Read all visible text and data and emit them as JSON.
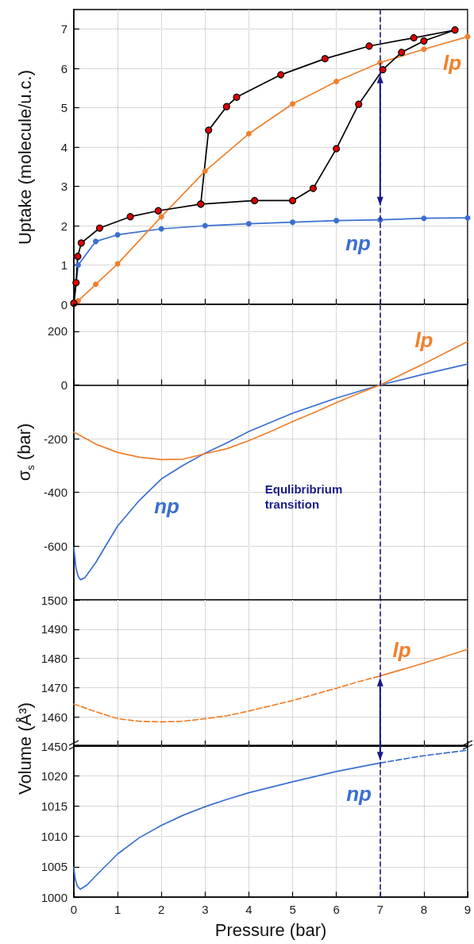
{
  "chart_data": [
    {
      "type": "line",
      "ylabel": "Uptake (molecule/u.c.)",
      "xlim": [
        0,
        9
      ],
      "xticks": [
        0,
        1,
        2,
        3,
        4,
        5,
        6,
        7,
        8,
        9
      ],
      "ylim": [
        0,
        7.5
      ],
      "yticks": [
        0,
        1,
        2,
        3,
        4,
        5,
        6,
        7
      ],
      "grid": true,
      "marker": "circle",
      "tick_labels": "y",
      "series": [
        {
          "color": "#3b6fd1",
          "x": [
            0,
            0.1,
            0.5,
            1,
            2,
            3,
            4,
            5,
            6,
            7,
            8,
            9
          ],
          "values": [
            0,
            1.0,
            1.6,
            1.77,
            1.92,
            2.0,
            2.05,
            2.09,
            2.13,
            2.15,
            2.19,
            2.2
          ]
        },
        {
          "color": "#f0802c",
          "x": [
            0,
            0.1,
            0.5,
            1,
            2,
            3,
            4,
            5,
            6,
            7,
            8,
            9
          ],
          "values": [
            0,
            0.09,
            0.51,
            1.03,
            2.23,
            3.39,
            4.34,
            5.1,
            5.67,
            6.15,
            6.49,
            6.81
          ]
        },
        {
          "color": "#000000",
          "x": [
            0,
            0.05,
            0.09,
            0.17,
            0.59,
            1.29,
            1.93,
            2.9,
            4.13,
            5.0,
            5.47,
            6.0,
            6.51,
            7.06,
            7.49,
            8.0,
            8.71,
            7.77,
            6.75,
            5.74,
            4.73,
            3.72,
            3.49,
            3.08,
            2.9
          ],
          "values": [
            0.03,
            0.55,
            1.22,
            1.56,
            1.94,
            2.23,
            2.38,
            2.55,
            2.64,
            2.64,
            2.95,
            3.96,
            5.09,
            5.97,
            6.41,
            6.7,
            6.98,
            6.78,
            6.57,
            6.25,
            5.84,
            5.27,
            5.03,
            4.43,
            2.55
          ],
          "colors": [
            "#e00000",
            "#e00000",
            "#e00000",
            "#e00000",
            "#e00000",
            "#e00000",
            "#e00000",
            "#e00000",
            "#e00000",
            "#e00000",
            "#e00000",
            "#e00000",
            "#e00000",
            "#e00000",
            "#e00000",
            "#e00000",
            "#e00000",
            "#e00000",
            "#e00000",
            "#e00000",
            "#e00000",
            "#e00000",
            "#e00000",
            "#e00000",
            "#e00000"
          ]
        }
      ],
      "ref_lines": [
        {
          "axis": "x",
          "value": 7,
          "color": "#1a1a8c",
          "line_style": "dashed"
        }
      ],
      "annotations": [
        "np",
        "lp"
      ]
    },
    {
      "type": "line",
      "ylabel": "σ$_{s}$ (bar)",
      "xlim": [
        0,
        9
      ],
      "xticks": [
        0,
        1,
        2,
        3,
        4,
        5,
        6,
        7,
        8,
        9
      ],
      "ylim": [
        -800,
        300
      ],
      "yticks": [
        -600,
        -400,
        -200,
        0,
        200
      ],
      "grid": true,
      "tick_labels": "y",
      "series": [
        {
          "color": "#3b6fd1",
          "x": [
            0,
            0.05,
            0.1,
            0.15,
            0.25,
            0.5,
            1,
            1.5,
            2,
            2.5,
            3,
            3.5,
            4,
            5,
            6,
            7,
            8,
            9
          ],
          "values": [
            -605,
            -684,
            -712,
            -725,
            -718,
            -661,
            -525,
            -429,
            -350,
            -299,
            -254,
            -215,
            -173,
            -105,
            -49,
            0,
            40,
            78
          ]
        },
        {
          "color": "#f0802c",
          "x": [
            0,
            0.5,
            1,
            1.5,
            2,
            2.5,
            3,
            3.5,
            4,
            4.5,
            5,
            5.5,
            6,
            6.5,
            7,
            8,
            9
          ],
          "values": [
            -175,
            -220,
            -251,
            -269,
            -278,
            -276,
            -256,
            -237,
            -207,
            -173,
            -136,
            -102,
            -66,
            -32,
            0,
            79,
            162
          ]
        }
      ],
      "ref_lines": [
        {
          "axis": "x",
          "value": 7,
          "color": "#1a1a8c",
          "line_style": "dashed",
          "label": "Equlibribrium transition"
        }
      ],
      "annotations": [
        "np",
        "lp"
      ]
    },
    {
      "type": "line",
      "xlim": [
        0,
        9
      ],
      "xticks": [
        0,
        1,
        2,
        3,
        4,
        5,
        6,
        7,
        8,
        9
      ],
      "ylim": [
        1450,
        1500
      ],
      "yticks": [
        1450,
        1460,
        1470,
        1480,
        1490,
        1500
      ],
      "grid": true,
      "tick_labels": "y",
      "series": [
        {
          "color": "#f0802c",
          "line_style": "dashed",
          "x": [
            0,
            0.5,
            1,
            1.5,
            2,
            2.5,
            3,
            3.5,
            4,
            4.5,
            5,
            5.5,
            6,
            6.5,
            7
          ],
          "values": [
            1464.4,
            1461.8,
            1459.4,
            1458.5,
            1458.3,
            1458.5,
            1459.4,
            1460.4,
            1462.0,
            1463.8,
            1465.6,
            1467.7,
            1469.8,
            1472.0,
            1474.0
          ]
        },
        {
          "color": "#f0802c",
          "line_style": "solid",
          "x": [
            7,
            8,
            9
          ],
          "values": [
            1474.0,
            1478.4,
            1483.1
          ]
        }
      ],
      "ref_lines": [
        {
          "axis": "x",
          "value": 7,
          "color": "#1a1a8c",
          "line_style": "dashed"
        }
      ],
      "annotations": [
        "lp"
      ]
    },
    {
      "type": "line",
      "xlabel": "Pressure (bar)",
      "ylabel": "Volume (Å³)",
      "xlim": [
        0,
        9
      ],
      "xticks": [
        0,
        1,
        2,
        3,
        4,
        5,
        6,
        7,
        8,
        9
      ],
      "ylim": [
        1000,
        1025
      ],
      "yticks": [
        1000,
        1005,
        1010,
        1015,
        1020
      ],
      "grid": true,
      "series": [
        {
          "color": "#3b6fd1",
          "line_style": "solid",
          "x": [
            0,
            0.03,
            0.08,
            0.15,
            0.3,
            0.5,
            1,
            1.5,
            2,
            2.5,
            3,
            3.5,
            4,
            5,
            6,
            7
          ],
          "values": [
            1004.9,
            1003.0,
            1001.8,
            1001.3,
            1002.0,
            1003.5,
            1007.1,
            1009.8,
            1011.8,
            1013.5,
            1014.9,
            1016.1,
            1017.2,
            1019.0,
            1020.7,
            1022.1
          ]
        },
        {
          "color": "#3b6fd1",
          "line_style": "dashed",
          "x": [
            7,
            8,
            9
          ],
          "values": [
            1022.1,
            1023.3,
            1024.2
          ]
        }
      ],
      "ref_lines": [
        {
          "axis": "x",
          "value": 7,
          "color": "#1a1a8c",
          "line_style": "dashed"
        }
      ],
      "annotations": [
        "np"
      ]
    }
  ]
}
